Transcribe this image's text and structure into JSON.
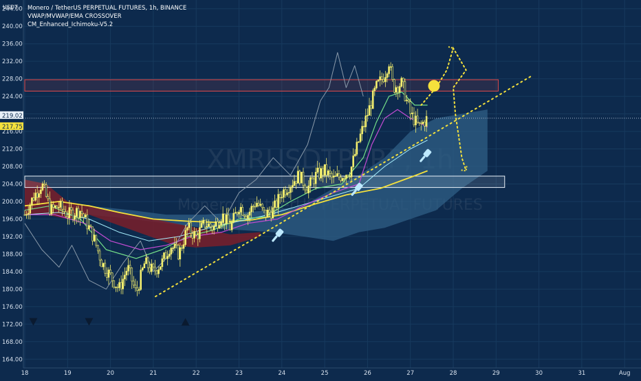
{
  "legend": {
    "line1": "Monero / TetherUS PERPETUAL FUTURES, 1h, BINANCE",
    "line2": "VWAP/MVWAP/EMA CROSSOVER",
    "line3": "CM_Enhanced_Ichimoku-V5.2"
  },
  "watermark": {
    "symbol": "XMRUSDTPERP, 1h",
    "subtitle": "Monero / TetherUS PERPETUAL FUTURES"
  },
  "colors": {
    "background": "#0d2a4d",
    "candle": "#f5f06e",
    "vwap": "#f5e13c",
    "ema_cyan": "#a8f0ff",
    "ema_green": "#74e089",
    "ema_magenta": "#c44bd4",
    "lagging": "#8a9aaa",
    "cloud_bull": "#2f5f86",
    "cloud_bear": "#7a1f2a",
    "zone_red": "#e04a4a",
    "zone_white": "#e8f0f8",
    "trendline": "#f5e13c",
    "arrow_marker": "#bde9ff"
  },
  "chart_data": {
    "type": "candlestick",
    "symbol": "XMRUSDT",
    "interval": "1h",
    "exchange": "BINANCE",
    "y_unit": "USDT",
    "ylim": [
      162,
      246
    ],
    "y_ticks": [
      164,
      168,
      172,
      176,
      180,
      184,
      188,
      192,
      196,
      200,
      204,
      208,
      212,
      216,
      220,
      224,
      228,
      232,
      236,
      240,
      244
    ],
    "y_tick_labels": [
      "164.00",
      "168.00",
      "172.00",
      "176.00",
      "180.00",
      "184.00",
      "188.00",
      "192.00",
      "196.00",
      "200.00",
      "204.00",
      "208.00",
      "212.00",
      "216.00",
      "220.00",
      "224.00",
      "228.00",
      "232.00",
      "236.00",
      "240.00",
      "244.00"
    ],
    "x_day_ticks": [
      18,
      19,
      20,
      21,
      22,
      23,
      24,
      25,
      26,
      27,
      28,
      29,
      30,
      31,
      32
    ],
    "x_tick_labels": [
      "18",
      "19",
      "20",
      "21",
      "22",
      "23",
      "24",
      "25",
      "26",
      "27",
      "28",
      "29",
      "30",
      "31",
      "Aug"
    ],
    "xlim": [
      18,
      32
    ],
    "price_tags": [
      {
        "label": "219.02",
        "value": 219.02,
        "color": "#e8f0f8"
      },
      {
        "label": "217.75",
        "value": 217.75,
        "color": "#f5e13c"
      }
    ],
    "dotted_price_line": 219.02,
    "candle_path": [
      [
        18.0,
        197
      ],
      [
        18.2,
        201
      ],
      [
        18.4,
        204
      ],
      [
        18.6,
        198
      ],
      [
        18.8,
        199
      ],
      [
        19.0,
        197
      ],
      [
        19.3,
        198
      ],
      [
        19.6,
        192
      ],
      [
        19.8,
        186
      ],
      [
        20.0,
        183
      ],
      [
        20.2,
        180
      ],
      [
        20.4,
        185
      ],
      [
        20.6,
        179
      ],
      [
        20.8,
        186
      ],
      [
        21.0,
        184
      ],
      [
        21.2,
        186
      ],
      [
        21.4,
        190
      ],
      [
        21.6,
        188
      ],
      [
        21.8,
        194
      ],
      [
        22.0,
        192
      ],
      [
        22.2,
        195
      ],
      [
        22.4,
        194
      ],
      [
        22.6,
        197
      ],
      [
        22.8,
        194
      ],
      [
        23.0,
        199
      ],
      [
        23.2,
        197
      ],
      [
        23.4,
        200
      ],
      [
        23.6,
        197
      ],
      [
        23.8,
        198
      ],
      [
        24.0,
        202
      ],
      [
        24.2,
        204
      ],
      [
        24.4,
        206
      ],
      [
        24.6,
        203
      ],
      [
        24.8,
        206
      ],
      [
        25.0,
        207
      ],
      [
        25.2,
        205
      ],
      [
        25.4,
        206
      ],
      [
        25.6,
        207
      ],
      [
        25.8,
        214
      ],
      [
        26.0,
        220
      ],
      [
        26.2,
        226
      ],
      [
        26.4,
        229
      ],
      [
        26.5,
        232
      ],
      [
        26.6,
        226
      ],
      [
        26.8,
        227
      ],
      [
        27.0,
        220
      ],
      [
        27.2,
        217
      ],
      [
        27.4,
        219.02
      ]
    ],
    "overlays": {
      "vwap_yellow": [
        [
          18.0,
          199
        ],
        [
          18.8,
          200
        ],
        [
          19.5,
          199
        ],
        [
          20.2,
          197.5
        ],
        [
          21.0,
          196
        ],
        [
          21.8,
          195.5
        ],
        [
          22.5,
          195.2
        ],
        [
          23.3,
          195.8
        ],
        [
          24.0,
          197
        ],
        [
          24.8,
          199.5
        ],
        [
          25.5,
          201.5
        ],
        [
          26.3,
          203
        ],
        [
          27.0,
          205.5
        ],
        [
          27.4,
          207
        ]
      ],
      "ema_cyan": [
        [
          18.0,
          197
        ],
        [
          18.8,
          197.5
        ],
        [
          19.5,
          196
        ],
        [
          20.2,
          193
        ],
        [
          20.9,
          191
        ],
        [
          21.6,
          192
        ],
        [
          22.3,
          194
        ],
        [
          23.0,
          195.5
        ],
        [
          23.7,
          197
        ],
        [
          24.4,
          199
        ],
        [
          25.1,
          201
        ],
        [
          25.8,
          203
        ],
        [
          26.4,
          208
        ],
        [
          27.0,
          212
        ],
        [
          27.4,
          214
        ]
      ],
      "ema_green": [
        [
          18.0,
          198
        ],
        [
          18.6,
          199
        ],
        [
          19.3,
          196
        ],
        [
          19.9,
          189
        ],
        [
          20.6,
          187
        ],
        [
          21.2,
          189
        ],
        [
          21.8,
          192
        ],
        [
          22.4,
          193.5
        ],
        [
          23.0,
          196
        ],
        [
          23.6,
          196.5
        ],
        [
          24.2,
          200
        ],
        [
          24.8,
          203
        ],
        [
          25.4,
          204
        ],
        [
          25.9,
          210
        ],
        [
          26.2,
          218
        ],
        [
          26.5,
          224
        ],
        [
          26.8,
          225
        ],
        [
          27.1,
          222
        ],
        [
          27.4,
          222
        ]
      ],
      "ema_magenta": [
        [
          18.0,
          197
        ],
        [
          18.7,
          197
        ],
        [
          19.4,
          195
        ],
        [
          20.0,
          191
        ],
        [
          20.7,
          189
        ],
        [
          21.3,
          190
        ],
        [
          21.9,
          192
        ],
        [
          22.6,
          193
        ],
        [
          23.2,
          195
        ],
        [
          23.9,
          196
        ],
        [
          24.5,
          199
        ],
        [
          25.2,
          202
        ],
        [
          25.8,
          204
        ],
        [
          26.1,
          213
        ],
        [
          26.4,
          219
        ],
        [
          26.7,
          221
        ],
        [
          27.0,
          219
        ],
        [
          27.4,
          217
        ]
      ],
      "lagging_gray": [
        [
          18.0,
          195
        ],
        [
          18.4,
          189
        ],
        [
          18.8,
          185
        ],
        [
          19.1,
          190
        ],
        [
          19.5,
          182
        ],
        [
          19.9,
          180
        ],
        [
          20.3,
          186
        ],
        [
          20.7,
          191
        ],
        [
          21.0,
          184
        ],
        [
          21.4,
          188
        ],
        [
          21.8,
          195
        ],
        [
          22.2,
          199
        ],
        [
          22.6,
          195
        ],
        [
          23.0,
          202
        ],
        [
          23.4,
          205
        ],
        [
          23.8,
          210
        ],
        [
          24.2,
          206
        ],
        [
          24.6,
          213
        ],
        [
          24.9,
          223
        ],
        [
          25.1,
          226
        ],
        [
          25.3,
          234
        ],
        [
          25.5,
          226
        ],
        [
          25.7,
          231
        ],
        [
          25.9,
          224
        ]
      ]
    },
    "ichimoku_cloud": {
      "bull_top": [
        [
          19.5,
          199
        ],
        [
          20.5,
          198
        ],
        [
          21.3,
          197
        ],
        [
          22.2,
          197
        ],
        [
          23.0,
          197.5
        ],
        [
          23.8,
          198
        ],
        [
          24.5,
          199
        ],
        [
          25.2,
          203
        ],
        [
          25.8,
          206
        ],
        [
          26.4,
          210
        ],
        [
          27.0,
          216
        ],
        [
          27.6,
          219
        ],
        [
          28.2,
          220
        ],
        [
          28.8,
          221
        ]
      ],
      "bull_bottom": [
        [
          19.5,
          197
        ],
        [
          20.5,
          196
        ],
        [
          21.3,
          195
        ],
        [
          22.2,
          194
        ],
        [
          23.0,
          193.5
        ],
        [
          23.8,
          193
        ],
        [
          24.5,
          192
        ],
        [
          25.2,
          191
        ],
        [
          25.8,
          193
        ],
        [
          26.4,
          194
        ],
        [
          27.0,
          196
        ],
        [
          27.6,
          198
        ],
        [
          28.2,
          203
        ],
        [
          28.8,
          207
        ]
      ],
      "bear_top": [
        [
          18.0,
          205
        ],
        [
          18.5,
          204
        ],
        [
          19.0,
          200
        ],
        [
          19.5,
          199
        ],
        [
          21.5,
          195
        ],
        [
          22.0,
          194
        ],
        [
          22.8,
          192.5
        ],
        [
          23.5,
          193
        ]
      ],
      "bear_bottom": [
        [
          18.0,
          197
        ],
        [
          18.5,
          197
        ],
        [
          19.0,
          196
        ],
        [
          19.5,
          197
        ],
        [
          21.5,
          190
        ],
        [
          22.0,
          189.5
        ],
        [
          22.8,
          190
        ],
        [
          23.5,
          192
        ]
      ]
    },
    "zones": [
      {
        "name": "resistance",
        "y0": 225.2,
        "y1": 227.8,
        "x0": 18.0,
        "x1": 29.05,
        "color": "#e04a4a"
      },
      {
        "name": "support",
        "y0": 203.2,
        "y1": 205.8,
        "x0": 18.0,
        "x1": 29.2,
        "color": "#e8f0f8"
      }
    ],
    "trendline": {
      "x0": 21.05,
      "y0": 178.3,
      "x1": 29.8,
      "y1": 228.5
    },
    "projection_path": [
      [
        27.25,
        222
      ],
      [
        27.6,
        226
      ],
      [
        27.85,
        230
      ],
      [
        28.0,
        235
      ],
      [
        28.3,
        230
      ],
      [
        28.0,
        226
      ],
      [
        28.05,
        220
      ],
      [
        28.2,
        210
      ],
      [
        28.3,
        207
      ]
    ],
    "target_circle": {
      "x": 27.55,
      "y": 226.4
    },
    "hand_markers": [
      {
        "x": 23.9,
        "y": 192.3
      },
      {
        "x": 25.75,
        "y": 202.8
      },
      {
        "x": 27.35,
        "y": 210.5
      }
    ],
    "triangle_markers": [
      {
        "x": 18.2,
        "y": 172.6,
        "dir": "down"
      },
      {
        "x": 19.5,
        "y": 172.6,
        "dir": "down"
      },
      {
        "x": 21.75,
        "y": 172.6,
        "dir": "up"
      }
    ]
  }
}
